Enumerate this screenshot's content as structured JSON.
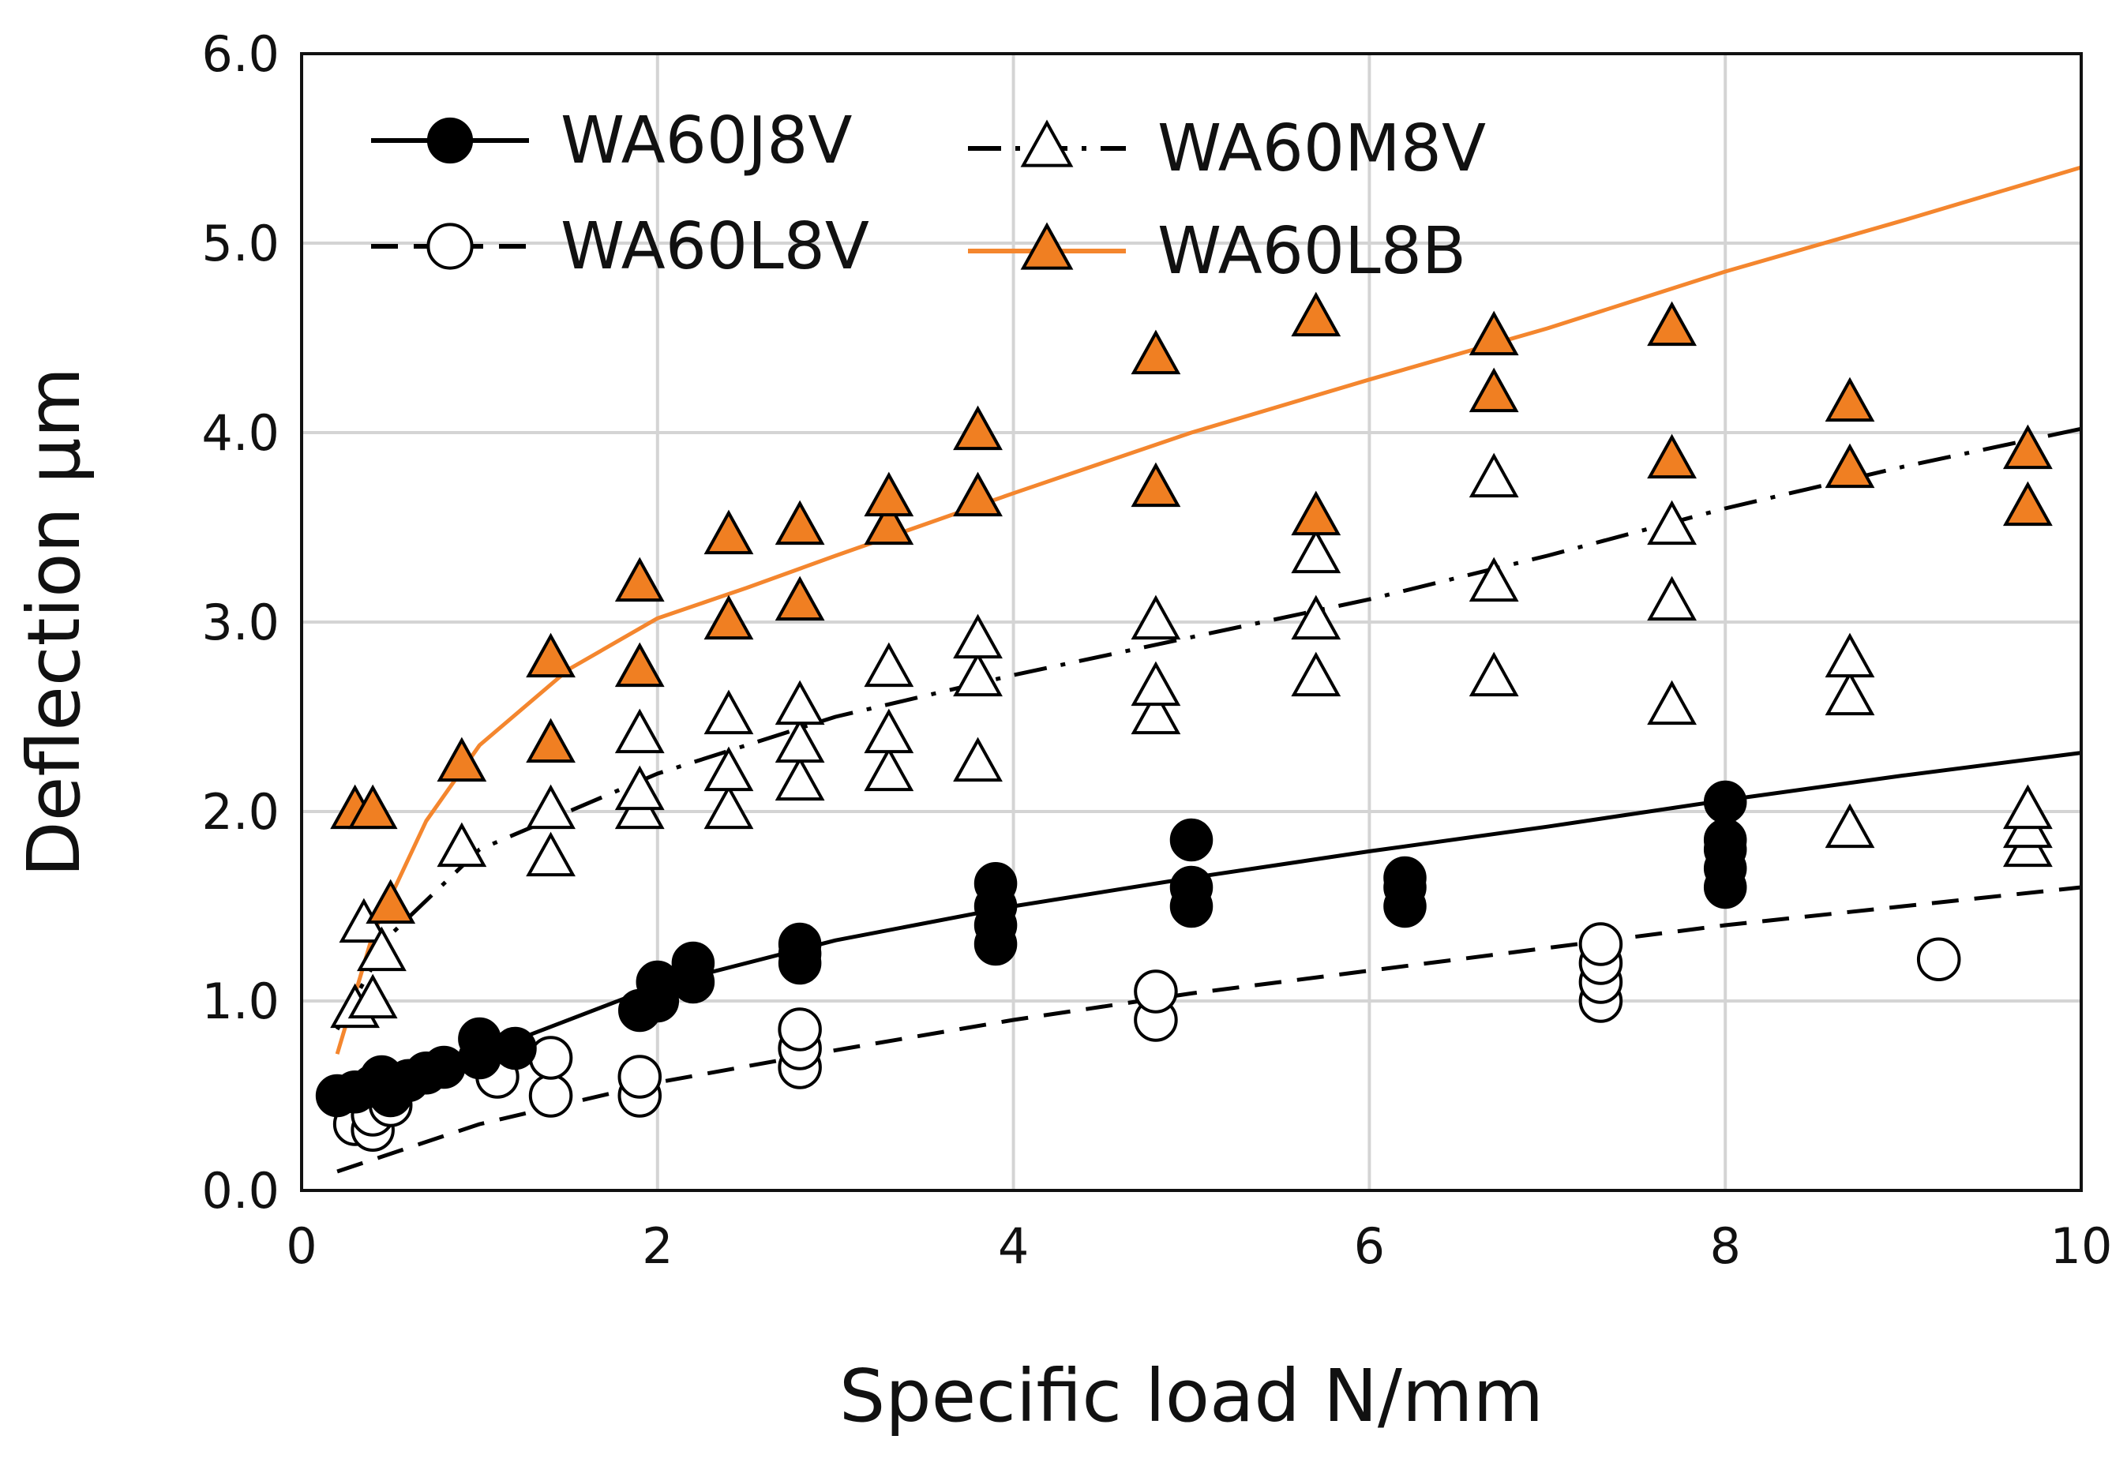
{
  "chart_data": {
    "type": "scatter",
    "xlabel": "Specific load N/mm",
    "ylabel": "Deflection μm",
    "xlim": [
      0,
      10
    ],
    "ylim": [
      0,
      6
    ],
    "xticks": [
      0,
      2,
      4,
      6,
      8,
      10
    ],
    "xtick_labels": [
      "0",
      "2",
      "4",
      "6",
      "8",
      "10"
    ],
    "yticks": [
      0,
      1,
      2,
      3,
      4,
      5,
      6
    ],
    "ytick_labels": [
      "0.0",
      "1.0",
      "2.0",
      "3.0",
      "4.0",
      "5.0",
      "6.0"
    ],
    "grid": true,
    "legend_position": "top-left",
    "series": [
      {
        "name": "WA60J8V",
        "marker": "filled-circle",
        "line_style": "solid",
        "line_color": "#000000",
        "marker_fill": "#000000",
        "points": [
          [
            0.2,
            0.5
          ],
          [
            0.3,
            0.52
          ],
          [
            0.4,
            0.55
          ],
          [
            0.45,
            0.6
          ],
          [
            0.5,
            0.5
          ],
          [
            0.6,
            0.58
          ],
          [
            0.7,
            0.62
          ],
          [
            0.8,
            0.65
          ],
          [
            1.0,
            0.8
          ],
          [
            1.0,
            0.7
          ],
          [
            1.2,
            0.75
          ],
          [
            1.9,
            0.95
          ],
          [
            2.0,
            1.0
          ],
          [
            2.0,
            1.1
          ],
          [
            2.2,
            1.1
          ],
          [
            2.2,
            1.2
          ],
          [
            2.8,
            1.2
          ],
          [
            2.8,
            1.3
          ],
          [
            2.8,
            1.25
          ],
          [
            3.9,
            1.3
          ],
          [
            3.9,
            1.4
          ],
          [
            3.9,
            1.5
          ],
          [
            3.9,
            1.62
          ],
          [
            5.0,
            1.5
          ],
          [
            5.0,
            1.6
          ],
          [
            5.0,
            1.85
          ],
          [
            6.2,
            1.5
          ],
          [
            6.2,
            1.6
          ],
          [
            6.2,
            1.65
          ],
          [
            8.0,
            1.6
          ],
          [
            8.0,
            1.7
          ],
          [
            8.0,
            1.8
          ],
          [
            8.0,
            1.85
          ],
          [
            8.0,
            2.05
          ]
        ],
        "trend": [
          [
            0.2,
            0.48
          ],
          [
            1,
            0.72
          ],
          [
            2,
            1.08
          ],
          [
            3,
            1.32
          ],
          [
            4,
            1.5
          ],
          [
            5,
            1.65
          ],
          [
            6,
            1.79
          ],
          [
            7,
            1.92
          ],
          [
            8,
            2.06
          ],
          [
            9,
            2.19
          ],
          [
            10,
            2.31
          ]
        ]
      },
      {
        "name": "WA60L8V",
        "marker": "open-circle",
        "line_style": "dashed",
        "line_color": "#000000",
        "marker_fill": "#ffffff",
        "points": [
          [
            0.3,
            0.35
          ],
          [
            0.4,
            0.32
          ],
          [
            0.4,
            0.4
          ],
          [
            0.5,
            0.45
          ],
          [
            1.1,
            0.6
          ],
          [
            1.4,
            0.5
          ],
          [
            1.4,
            0.7
          ],
          [
            1.9,
            0.5
          ],
          [
            1.9,
            0.6
          ],
          [
            2.8,
            0.65
          ],
          [
            2.8,
            0.75
          ],
          [
            2.8,
            0.85
          ],
          [
            4.8,
            0.9
          ],
          [
            4.8,
            1.05
          ],
          [
            7.3,
            1.0
          ],
          [
            7.3,
            1.1
          ],
          [
            7.3,
            1.2
          ],
          [
            7.3,
            1.3
          ],
          [
            9.2,
            1.22
          ]
        ],
        "trend": [
          [
            0.2,
            0.1
          ],
          [
            1,
            0.35
          ],
          [
            2,
            0.57
          ],
          [
            3,
            0.74
          ],
          [
            4,
            0.9
          ],
          [
            5,
            1.04
          ],
          [
            6,
            1.16
          ],
          [
            7,
            1.28
          ],
          [
            8,
            1.4
          ],
          [
            9,
            1.5
          ],
          [
            10,
            1.6
          ]
        ]
      },
      {
        "name": "WA60M8V",
        "marker": "open-triangle",
        "line_style": "dash-dot",
        "line_color": "#000000",
        "marker_fill": "#ffffff",
        "points": [
          [
            0.3,
            0.95
          ],
          [
            0.35,
            1.4
          ],
          [
            0.4,
            1.0
          ],
          [
            0.45,
            1.25
          ],
          [
            0.9,
            1.8
          ],
          [
            1.4,
            1.75
          ],
          [
            1.4,
            2.0
          ],
          [
            1.9,
            2.0
          ],
          [
            1.9,
            2.1
          ],
          [
            1.9,
            2.4
          ],
          [
            2.4,
            2.0
          ],
          [
            2.4,
            2.2
          ],
          [
            2.4,
            2.5
          ],
          [
            2.8,
            2.15
          ],
          [
            2.8,
            2.35
          ],
          [
            2.8,
            2.55
          ],
          [
            3.3,
            2.2
          ],
          [
            3.3,
            2.4
          ],
          [
            3.3,
            2.75
          ],
          [
            3.8,
            2.25
          ],
          [
            3.8,
            2.7
          ],
          [
            3.8,
            2.9
          ],
          [
            4.8,
            2.5
          ],
          [
            4.8,
            2.65
          ],
          [
            4.8,
            3.0
          ],
          [
            5.7,
            2.7
          ],
          [
            5.7,
            3.0
          ],
          [
            5.7,
            3.35
          ],
          [
            6.7,
            2.7
          ],
          [
            6.7,
            3.2
          ],
          [
            6.7,
            3.75
          ],
          [
            7.7,
            2.55
          ],
          [
            7.7,
            3.1
          ],
          [
            7.7,
            3.5
          ],
          [
            8.7,
            1.9
          ],
          [
            8.7,
            2.6
          ],
          [
            8.7,
            2.8
          ],
          [
            9.7,
            1.8
          ],
          [
            9.7,
            1.9
          ],
          [
            9.7,
            2.0
          ]
        ],
        "trend": [
          [
            0.2,
            0.85
          ],
          [
            0.5,
            1.35
          ],
          [
            1,
            1.8
          ],
          [
            2,
            2.2
          ],
          [
            3,
            2.5
          ],
          [
            4,
            2.72
          ],
          [
            5,
            2.92
          ],
          [
            6,
            3.12
          ],
          [
            7,
            3.35
          ],
          [
            8,
            3.6
          ],
          [
            9,
            3.82
          ],
          [
            10,
            4.02
          ]
        ]
      },
      {
        "name": "WA60L8B",
        "marker": "filled-triangle",
        "line_style": "solid",
        "line_color": "#f4862e",
        "marker_fill": "#f07f22",
        "points": [
          [
            0.3,
            2.0
          ],
          [
            0.4,
            2.0
          ],
          [
            0.5,
            1.5
          ],
          [
            0.9,
            2.25
          ],
          [
            1.4,
            2.35
          ],
          [
            1.4,
            2.8
          ],
          [
            1.9,
            2.75
          ],
          [
            1.9,
            3.2
          ],
          [
            2.4,
            3.0
          ],
          [
            2.4,
            3.45
          ],
          [
            2.8,
            3.1
          ],
          [
            2.8,
            3.5
          ],
          [
            3.3,
            3.5
          ],
          [
            3.3,
            3.65
          ],
          [
            3.8,
            3.65
          ],
          [
            3.8,
            4.0
          ],
          [
            4.8,
            3.7
          ],
          [
            4.8,
            4.4
          ],
          [
            5.7,
            3.55
          ],
          [
            5.7,
            4.6
          ],
          [
            6.7,
            4.2
          ],
          [
            6.7,
            4.5
          ],
          [
            7.7,
            3.85
          ],
          [
            7.7,
            4.55
          ],
          [
            8.7,
            3.8
          ],
          [
            8.7,
            4.15
          ],
          [
            9.7,
            3.6
          ],
          [
            9.7,
            3.9
          ]
        ],
        "trend": [
          [
            0.2,
            0.72
          ],
          [
            0.4,
            1.35
          ],
          [
            0.7,
            1.95
          ],
          [
            1,
            2.35
          ],
          [
            1.5,
            2.75
          ],
          [
            2,
            3.02
          ],
          [
            2.5,
            3.18
          ],
          [
            3,
            3.35
          ],
          [
            4,
            3.68
          ],
          [
            5,
            4.0
          ],
          [
            6,
            4.28
          ],
          [
            7,
            4.55
          ],
          [
            8,
            4.85
          ],
          [
            9,
            5.12
          ],
          [
            10,
            5.4
          ]
        ]
      }
    ]
  }
}
